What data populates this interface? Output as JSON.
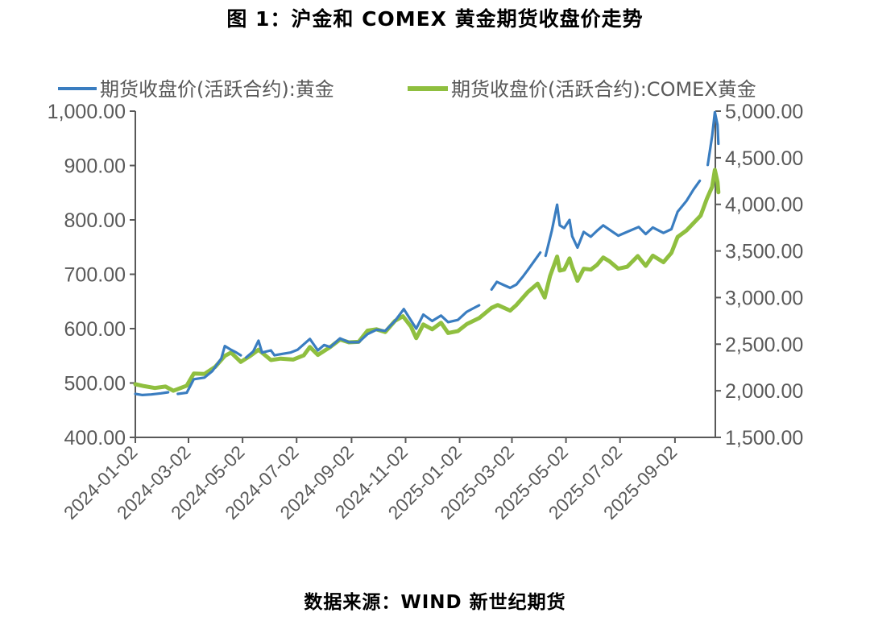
{
  "title": "图 1：沪金和 COMEX 黄金期货收盘价走势",
  "source": "数据来源：WIND  新世纪期货",
  "colors": {
    "series_left": "#3a7dc0",
    "series_right": "#8fbf3f",
    "axis": "#595959"
  },
  "chart_data": {
    "type": "line",
    "title": "图 1：沪金和 COMEX 黄金期货收盘价走势",
    "x_ticks": [
      "2024-01-02",
      "2024-03-02",
      "2024-05-02",
      "2024-07-02",
      "2024-09-02",
      "2024-11-02",
      "2025-01-02",
      "2025-03-02",
      "2025-05-02",
      "2025-07-02",
      "2025-09-02"
    ],
    "x_range": [
      "2024-01-02",
      "2025-10-21"
    ],
    "y_left": {
      "min": 400,
      "max": 1000,
      "ticks": [
        "1,000.00",
        "900.00",
        "800.00",
        "700.00",
        "600.00",
        "500.00",
        "400.00"
      ]
    },
    "y_right": {
      "min": 1500,
      "max": 5000,
      "ticks": [
        "5,000.00",
        "4,500.00",
        "4,000.00",
        "3,500.00",
        "3,000.00",
        "2,500.00",
        "2,000.00",
        "1,500.00"
      ]
    },
    "legend_position": "top",
    "grid": false,
    "series": [
      {
        "name": "期货收盘价(活跃合约):黄金",
        "axis": "left",
        "points": [
          [
            "2024-01-02",
            480
          ],
          [
            "2024-01-10",
            478
          ],
          [
            "2024-01-20",
            479
          ],
          [
            "2024-01-31",
            481
          ],
          [
            "2024-02-08",
            483
          ],
          null,
          [
            "2024-02-19",
            480
          ],
          [
            "2024-02-29",
            482
          ],
          [
            "2024-03-08",
            507
          ],
          [
            "2024-03-20",
            510
          ],
          [
            "2024-03-29",
            522
          ],
          [
            "2024-04-08",
            545
          ],
          [
            "2024-04-12",
            568
          ],
          [
            "2024-04-18",
            562
          ],
          [
            "2024-04-25",
            556
          ],
          [
            "2024-04-30",
            551
          ],
          null,
          [
            "2024-05-06",
            547
          ],
          [
            "2024-05-14",
            558
          ],
          [
            "2024-05-20",
            578
          ],
          [
            "2024-05-24",
            556
          ],
          [
            "2024-06-03",
            560
          ],
          [
            "2024-06-07",
            551
          ],
          [
            "2024-06-14",
            553
          ],
          [
            "2024-06-25",
            556
          ],
          [
            "2024-07-03",
            561
          ],
          [
            "2024-07-17",
            581
          ],
          [
            "2024-07-26",
            560
          ],
          [
            "2024-08-02",
            570
          ],
          [
            "2024-08-09",
            566
          ],
          [
            "2024-08-20",
            582
          ],
          [
            "2024-08-30",
            575
          ],
          [
            "2024-09-10",
            575
          ],
          [
            "2024-09-20",
            590
          ],
          [
            "2024-09-30",
            598
          ],
          [
            "2024-10-10",
            596
          ],
          [
            "2024-10-21",
            614
          ],
          [
            "2024-10-31",
            636
          ],
          [
            "2024-11-05",
            623
          ],
          [
            "2024-11-14",
            600
          ],
          [
            "2024-11-22",
            626
          ],
          [
            "2024-12-02",
            614
          ],
          [
            "2024-12-12",
            624
          ],
          [
            "2024-12-20",
            612
          ],
          [
            "2024-12-31",
            616
          ],
          [
            "2025-01-10",
            631
          ],
          [
            "2025-01-17",
            637
          ],
          [
            "2025-01-24",
            643
          ],
          null,
          [
            "2025-02-07",
            672
          ],
          [
            "2025-02-13",
            686
          ],
          [
            "2025-02-21",
            680
          ],
          [
            "2025-02-28",
            675
          ],
          [
            "2025-03-07",
            681
          ],
          [
            "2025-03-14",
            695
          ],
          [
            "2025-03-20",
            708
          ],
          [
            "2025-03-31",
            733
          ],
          [
            "2025-04-03",
            740
          ],
          null,
          [
            "2025-04-09",
            734
          ],
          [
            "2025-04-16",
            780
          ],
          [
            "2025-04-22",
            828
          ],
          [
            "2025-04-25",
            790
          ],
          [
            "2025-04-30",
            785
          ],
          [
            "2025-05-06",
            800
          ],
          [
            "2025-05-09",
            770
          ],
          [
            "2025-05-15",
            749
          ],
          [
            "2025-05-22",
            778
          ],
          [
            "2025-05-30",
            769
          ],
          [
            "2025-06-06",
            780
          ],
          [
            "2025-06-13",
            790
          ],
          [
            "2025-06-20",
            782
          ],
          [
            "2025-06-30",
            771
          ],
          [
            "2025-07-10",
            778
          ],
          [
            "2025-07-23",
            787
          ],
          [
            "2025-07-31",
            774
          ],
          [
            "2025-08-08",
            786
          ],
          [
            "2025-08-20",
            776
          ],
          [
            "2025-08-29",
            783
          ],
          [
            "2025-09-05",
            815
          ],
          [
            "2025-09-15",
            835
          ],
          [
            "2025-09-23",
            856
          ],
          [
            "2025-09-30",
            872
          ],
          null,
          [
            "2025-10-09",
            901
          ],
          [
            "2025-10-14",
            955
          ],
          [
            "2025-10-17",
            998
          ],
          [
            "2025-10-20",
            975
          ],
          [
            "2025-10-21",
            940
          ]
        ]
      },
      {
        "name": "期货收盘价(活跃合约):COMEX黄金",
        "axis": "right",
        "points": [
          [
            "2024-01-02",
            2070
          ],
          [
            "2024-01-12",
            2050
          ],
          [
            "2024-01-24",
            2030
          ],
          [
            "2024-02-05",
            2045
          ],
          [
            "2024-02-14",
            2000
          ],
          [
            "2024-02-29",
            2055
          ],
          [
            "2024-03-08",
            2185
          ],
          [
            "2024-03-20",
            2180
          ],
          [
            "2024-04-01",
            2255
          ],
          [
            "2024-04-12",
            2375
          ],
          [
            "2024-04-19",
            2410
          ],
          [
            "2024-04-30",
            2310
          ],
          [
            "2024-05-10",
            2370
          ],
          [
            "2024-05-20",
            2440
          ],
          [
            "2024-06-03",
            2330
          ],
          [
            "2024-06-14",
            2345
          ],
          [
            "2024-06-28",
            2335
          ],
          [
            "2024-07-10",
            2380
          ],
          [
            "2024-07-17",
            2470
          ],
          [
            "2024-07-26",
            2385
          ],
          [
            "2024-08-09",
            2470
          ],
          [
            "2024-08-20",
            2550
          ],
          [
            "2024-08-30",
            2520
          ],
          [
            "2024-09-10",
            2525
          ],
          [
            "2024-09-20",
            2645
          ],
          [
            "2024-09-30",
            2660
          ],
          [
            "2024-10-10",
            2630
          ],
          [
            "2024-10-21",
            2750
          ],
          [
            "2024-10-30",
            2800
          ],
          [
            "2024-11-08",
            2690
          ],
          [
            "2024-11-14",
            2565
          ],
          [
            "2024-11-22",
            2712
          ],
          [
            "2024-12-02",
            2660
          ],
          [
            "2024-12-12",
            2730
          ],
          [
            "2024-12-20",
            2620
          ],
          [
            "2024-12-31",
            2640
          ],
          [
            "2025-01-10",
            2715
          ],
          [
            "2025-01-24",
            2780
          ],
          [
            "2025-02-07",
            2890
          ],
          [
            "2025-02-14",
            2920
          ],
          [
            "2025-02-28",
            2860
          ],
          [
            "2025-03-07",
            2920
          ],
          [
            "2025-03-20",
            3060
          ],
          [
            "2025-03-31",
            3150
          ],
          [
            "2025-04-08",
            3000
          ],
          [
            "2025-04-14",
            3230
          ],
          [
            "2025-04-22",
            3440
          ],
          [
            "2025-04-25",
            3290
          ],
          [
            "2025-04-30",
            3300
          ],
          [
            "2025-05-06",
            3420
          ],
          [
            "2025-05-09",
            3330
          ],
          [
            "2025-05-15",
            3180
          ],
          [
            "2025-05-22",
            3310
          ],
          [
            "2025-05-30",
            3300
          ],
          [
            "2025-06-06",
            3350
          ],
          [
            "2025-06-13",
            3430
          ],
          [
            "2025-06-20",
            3390
          ],
          [
            "2025-06-30",
            3310
          ],
          [
            "2025-07-10",
            3330
          ],
          [
            "2025-07-22",
            3445
          ],
          [
            "2025-07-31",
            3340
          ],
          [
            "2025-08-08",
            3450
          ],
          [
            "2025-08-20",
            3380
          ],
          [
            "2025-08-29",
            3480
          ],
          [
            "2025-09-05",
            3650
          ],
          [
            "2025-09-15",
            3720
          ],
          [
            "2025-09-23",
            3800
          ],
          [
            "2025-10-01",
            3880
          ],
          [
            "2025-10-08",
            4060
          ],
          [
            "2025-10-14",
            4190
          ],
          [
            "2025-10-17",
            4370
          ],
          [
            "2025-10-20",
            4240
          ],
          [
            "2025-10-21",
            4130
          ]
        ]
      }
    ]
  }
}
